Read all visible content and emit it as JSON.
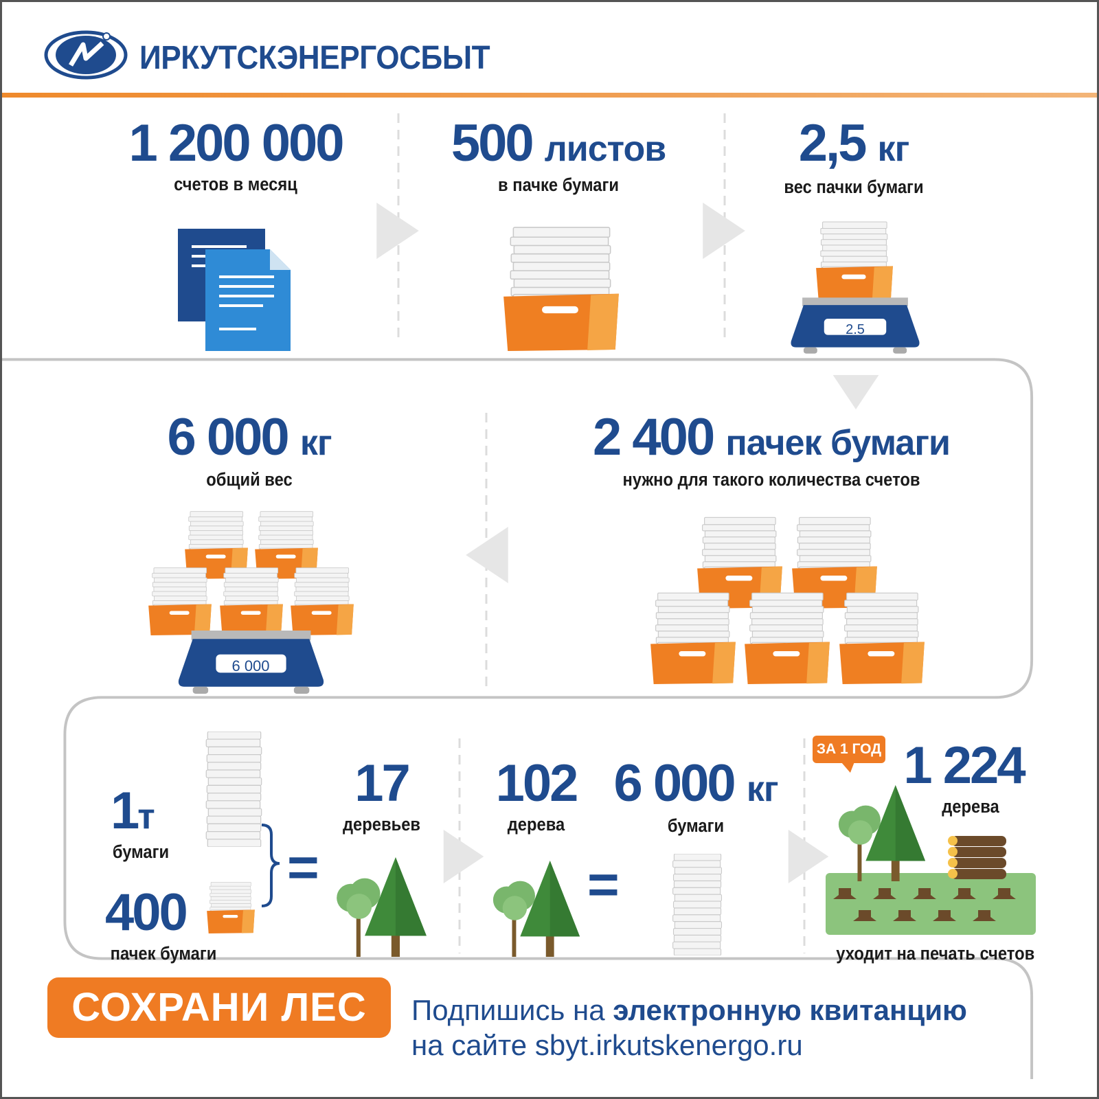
{
  "header": {
    "brand": "ИРКУТСКЭНЕРГОСБЫТ",
    "logo_icon": "irkutskenergo-logo",
    "accent_color": "#ef7b23",
    "brand_color": "#1f4b8e"
  },
  "row1": [
    {
      "value": "1 200 000",
      "unit": "",
      "label": "счетов в месяц",
      "icon": "documents-icon"
    },
    {
      "value": "500",
      "unit": "листов",
      "label": "в пачке бумаги",
      "icon": "paper-box-icon"
    },
    {
      "value": "2,5",
      "unit": "кг",
      "label": "вес  пачки бумаги",
      "icon": "scale-icon",
      "display": "2.5"
    }
  ],
  "row2": [
    {
      "value": "2 400",
      "unit": "пачек бумаги",
      "label": "нужно для такого количества счетов",
      "icon": "paper-boxes-icon"
    },
    {
      "value": "6 000",
      "unit": "кг",
      "label": "общий вес",
      "icon": "scale-icon",
      "display": "6 000"
    }
  ],
  "row3": {
    "ton": {
      "value": "1",
      "unit": "т",
      "label": "бумаги"
    },
    "packs": {
      "value": "400",
      "label": "пачек бумаги"
    },
    "equals": "=",
    "trees17": {
      "value": "17",
      "label": "деревьев"
    },
    "trees102": {
      "value": "102",
      "label": "дерева"
    },
    "paper6000": {
      "value": "6 000",
      "unit": "кг",
      "label": "бумаги"
    },
    "badge": "ЗА 1 ГОД",
    "year": {
      "value": "1 224",
      "label": "дерева",
      "caption": "уходит на печать счетов"
    }
  },
  "footer": {
    "cta": "СОХРАНИ  ЛЕС",
    "line1_prefix": "Подпишись на ",
    "line1_bold": "электронную квитанцию",
    "line2_prefix": "на сайте  ",
    "line2_url": "sbyt.irkutskenergo.ru"
  }
}
